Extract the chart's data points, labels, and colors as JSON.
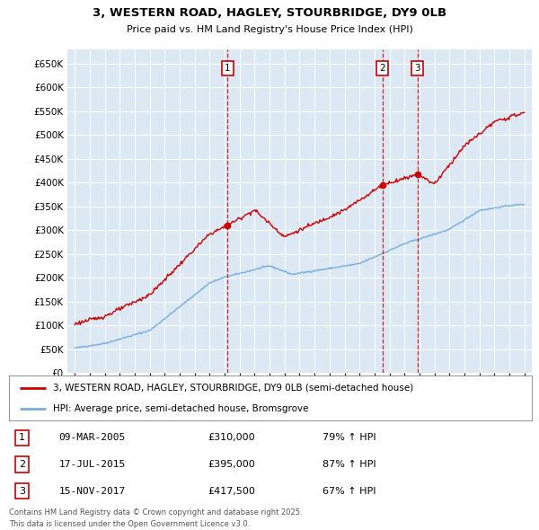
{
  "title_line1": "3, WESTERN ROAD, HAGLEY, STOURBRIDGE, DY9 0LB",
  "title_line2": "Price paid vs. HM Land Registry's House Price Index (HPI)",
  "plot_bg_color": "#dce9f5",
  "red_line_color": "#cc0000",
  "blue_line_color": "#7aaddc",
  "sale_events": [
    {
      "num": 1,
      "date": "09-MAR-2005",
      "price": 310000,
      "hpi_pct": "79%",
      "x_year": 2005.19
    },
    {
      "num": 2,
      "date": "17-JUL-2015",
      "price": 395000,
      "hpi_pct": "87%",
      "x_year": 2015.54
    },
    {
      "num": 3,
      "date": "15-NOV-2017",
      "price": 417500,
      "hpi_pct": "67%",
      "x_year": 2017.87
    }
  ],
  "legend_line1": "3, WESTERN ROAD, HAGLEY, STOURBRIDGE, DY9 0LB (semi-detached house)",
  "legend_line2": "HPI: Average price, semi-detached house, Bromsgrove",
  "footer_line1": "Contains HM Land Registry data © Crown copyright and database right 2025.",
  "footer_line2": "This data is licensed under the Open Government Licence v3.0.",
  "ylim": [
    0,
    680000
  ],
  "yticks": [
    0,
    50000,
    100000,
    150000,
    200000,
    250000,
    300000,
    350000,
    400000,
    450000,
    500000,
    550000,
    600000,
    650000
  ],
  "xlim": [
    1994.5,
    2025.5
  ]
}
